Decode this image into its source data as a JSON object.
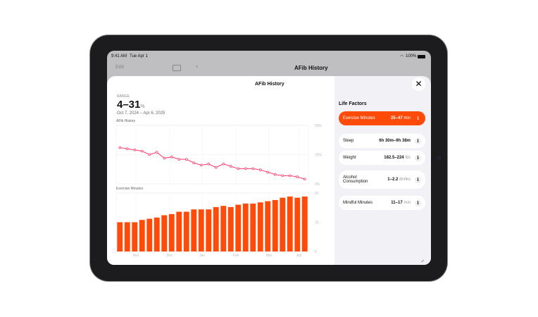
{
  "status_bar": {
    "time": "9:41 AM",
    "date": "Tue Apr 1",
    "battery": "100%"
  },
  "nav": {
    "edit": "Edit",
    "title": "AFib History"
  },
  "sheet": {
    "title": "AFib History",
    "range_label": "RANGE",
    "range_value": "4–31",
    "range_unit": "%",
    "date_range": "Oct 7, 2024 – Apr 6, 2025"
  },
  "life_factors": {
    "title": "Life Factors",
    "items": [
      {
        "label": "Exercise Minutes",
        "value": "25–47",
        "unit": "min",
        "selected": true
      },
      {
        "label": "Sleep",
        "value": "6h 30m–9h 38m",
        "unit": "",
        "selected": false
      },
      {
        "label": "Weight",
        "value": "182.5–224",
        "unit": "lbs",
        "selected": false
      },
      {
        "label": "Alcohol Consumption",
        "value": "1–2.2",
        "unit": "drinks",
        "selected": false
      },
      {
        "label": "Mindful Minutes",
        "value": "11–17",
        "unit": "min",
        "selected": false
      }
    ]
  },
  "chart_data": [
    {
      "type": "line",
      "title": "AFib History",
      "ylim": [
        0,
        50
      ],
      "y_ticks": [
        "50%",
        "25%",
        "0%"
      ],
      "color": "#ff3b6b",
      "values": [
        31,
        30,
        29,
        28,
        25,
        27,
        22,
        23,
        21,
        21,
        18,
        16,
        17,
        14,
        17,
        15,
        13,
        13,
        13,
        12,
        10,
        8,
        7,
        7,
        6,
        4
      ]
    },
    {
      "type": "bar",
      "title": "Exercise Minutes",
      "ylim": [
        0,
        50
      ],
      "y_ticks": [
        "50",
        "25",
        "0"
      ],
      "color": "#ff4b0a",
      "x_ticks": [
        "Nov",
        "Dec",
        "Jan",
        "Feb",
        "Mar",
        "Apr"
      ],
      "values": [
        25,
        25,
        25,
        27,
        28,
        29,
        31,
        32,
        34,
        34,
        36,
        36,
        36,
        38,
        39,
        38,
        40,
        41,
        41,
        42,
        43,
        44,
        46,
        47,
        46,
        47
      ]
    }
  ],
  "colors": {
    "accent": "#ff4b0a",
    "line": "#ff3b6b"
  }
}
